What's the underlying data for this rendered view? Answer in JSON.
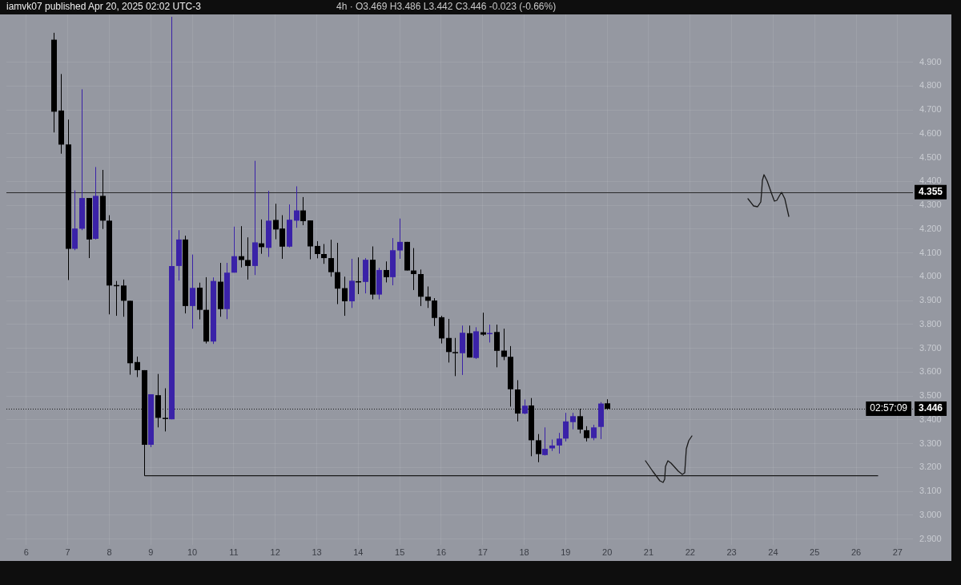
{
  "chart_data": {
    "type": "candlestick",
    "title": "iamvk07 published Apr 20, 2025 02:02 UTC-3",
    "subtitle": "4h · O3.469 H3.486 L3.442 C3.446 -0.023 (-0.66%)",
    "x": [
      6.667,
      6.833,
      7,
      7.167,
      7.333,
      7.5,
      7.667,
      7.833,
      8,
      8.167,
      8.333,
      8.5,
      8.667,
      8.833,
      9,
      9.167,
      9.333,
      9.5,
      9.667,
      9.833,
      10,
      10.167,
      10.333,
      10.5,
      10.667,
      10.833,
      11,
      11.167,
      11.333,
      11.5,
      11.667,
      11.833,
      12,
      12.167,
      12.333,
      12.5,
      12.667,
      12.833,
      13,
      13.167,
      13.333,
      13.5,
      13.667,
      13.833,
      14,
      14.167,
      14.333,
      14.5,
      14.667,
      14.833,
      15,
      15.167,
      15.333,
      15.5,
      15.667,
      15.833,
      16,
      16.167,
      16.333,
      16.5,
      16.667,
      16.833,
      17,
      17.167,
      17.333,
      17.5,
      17.667,
      17.833,
      18,
      18.167,
      18.333,
      18.5,
      18.667,
      18.833,
      19,
      19.167,
      19.333,
      19.5,
      19.667,
      19.833,
      20
    ],
    "ohlc": [
      [
        4.994,
        5.023,
        4.605,
        4.692
      ],
      [
        4.697,
        4.85,
        4.516,
        4.554
      ],
      [
        4.555,
        4.659,
        3.986,
        4.117
      ],
      [
        4.117,
        4.362,
        4.111,
        4.202
      ],
      [
        4.201,
        4.786,
        4.195,
        4.33
      ],
      [
        4.33,
        4.33,
        4.078,
        4.156
      ],
      [
        4.159,
        4.46,
        4.156,
        4.339
      ],
      [
        4.339,
        4.448,
        4.2,
        4.235
      ],
      [
        4.235,
        4.258,
        3.842,
        3.963
      ],
      [
        3.965,
        3.982,
        3.836,
        3.962
      ],
      [
        3.963,
        3.988,
        3.832,
        3.899
      ],
      [
        3.899,
        3.899,
        3.589,
        3.637
      ],
      [
        3.642,
        3.665,
        3.579,
        3.608
      ],
      [
        3.608,
        3.608,
        3.165,
        3.295
      ],
      [
        3.295,
        3.507,
        3.285,
        3.507
      ],
      [
        3.503,
        3.592,
        3.368,
        3.408
      ],
      [
        3.408,
        3.532,
        3.351,
        3.405
      ],
      [
        3.402,
        5.09,
        3.402,
        4.045
      ],
      [
        4.045,
        4.195,
        3.984,
        4.156
      ],
      [
        4.156,
        4.172,
        3.846,
        3.877
      ],
      [
        3.877,
        4.093,
        3.782,
        3.953
      ],
      [
        3.954,
        3.975,
        3.821,
        3.861
      ],
      [
        3.861,
        3.998,
        3.72,
        3.728
      ],
      [
        3.728,
        3.997,
        3.718,
        3.982
      ],
      [
        3.979,
        4.058,
        3.832,
        3.864
      ],
      [
        3.864,
        4.058,
        3.822,
        4.017
      ],
      [
        4.017,
        4.21,
        4.017,
        4.086
      ],
      [
        4.086,
        4.212,
        4.039,
        4.07
      ],
      [
        4.07,
        4.165,
        3.988,
        4.045
      ],
      [
        4.045,
        4.486,
        4.007,
        4.144
      ],
      [
        4.14,
        4.24,
        4.096,
        4.124
      ],
      [
        4.121,
        4.36,
        4.083,
        4.235
      ],
      [
        4.238,
        4.306,
        4.157,
        4.198
      ],
      [
        4.202,
        4.258,
        4.075,
        4.126
      ],
      [
        4.126,
        4.303,
        4.123,
        4.239
      ],
      [
        4.235,
        4.379,
        4.205,
        4.278
      ],
      [
        4.278,
        4.334,
        4.216,
        4.233
      ],
      [
        4.236,
        4.236,
        4.073,
        4.127
      ],
      [
        4.129,
        4.149,
        4.077,
        4.095
      ],
      [
        4.095,
        4.137,
        4.054,
        4.078
      ],
      [
        4.078,
        4.155,
        4,
        4.019
      ],
      [
        4.019,
        4.142,
        3.885,
        3.95
      ],
      [
        3.952,
        4,
        3.836,
        3.897
      ],
      [
        3.897,
        4.075,
        3.869,
        3.983
      ],
      [
        3.981,
        4.081,
        3.927,
        3.978
      ],
      [
        3.978,
        4.078,
        3.93,
        4.071
      ],
      [
        4.071,
        4.127,
        3.905,
        3.925
      ],
      [
        3.925,
        4.037,
        3.905,
        4.028
      ],
      [
        4.028,
        4.064,
        3.976,
        3.998
      ],
      [
        3.998,
        4.162,
        3.964,
        4.111
      ],
      [
        4.11,
        4.244,
        4.075,
        4.146
      ],
      [
        4.146,
        4.146,
        4.026,
        4.026
      ],
      [
        4.026,
        4.12,
        3.944,
        4.011
      ],
      [
        4.011,
        4.03,
        3.877,
        3.916
      ],
      [
        3.916,
        3.959,
        3.869,
        3.899
      ],
      [
        3.9,
        3.91,
        3.793,
        3.827
      ],
      [
        3.83,
        3.836,
        3.72,
        3.741
      ],
      [
        3.743,
        3.823,
        3.64,
        3.684
      ],
      [
        3.684,
        3.743,
        3.583,
        3.681
      ],
      [
        3.679,
        3.795,
        3.588,
        3.765
      ],
      [
        3.763,
        3.795,
        3.661,
        3.661
      ],
      [
        3.659,
        3.788,
        3.655,
        3.771
      ],
      [
        3.767,
        3.849,
        3.752,
        3.757
      ],
      [
        3.761,
        3.799,
        3.724,
        3.764
      ],
      [
        3.768,
        3.799,
        3.62,
        3.689
      ],
      [
        3.69,
        3.782,
        3.65,
        3.664
      ],
      [
        3.664,
        3.709,
        3.455,
        3.528
      ],
      [
        3.527,
        3.566,
        3.393,
        3.426
      ],
      [
        3.426,
        3.485,
        3.423,
        3.459
      ],
      [
        3.46,
        3.491,
        3.247,
        3.314
      ],
      [
        3.314,
        3.34,
        3.222,
        3.256
      ],
      [
        3.252,
        3.368,
        3.25,
        3.278
      ],
      [
        3.28,
        3.317,
        3.269,
        3.292
      ],
      [
        3.292,
        3.345,
        3.258,
        3.321
      ],
      [
        3.321,
        3.429,
        3.309,
        3.393
      ],
      [
        3.39,
        3.429,
        3.36,
        3.415
      ],
      [
        3.415,
        3.446,
        3.343,
        3.359
      ],
      [
        3.356,
        3.373,
        3.309,
        3.323
      ],
      [
        3.323,
        3.379,
        3.314,
        3.368
      ],
      [
        3.37,
        3.474,
        3.319,
        3.468
      ],
      [
        3.469,
        3.486,
        3.442,
        3.446
      ]
    ],
    "colors": [
      "#000000",
      "#000000",
      "#000000",
      "#3a22a8",
      "#3a22a8",
      "#000000",
      "#3a22a8",
      "#000000",
      "#000000",
      "#000000",
      "#000000",
      "#000000",
      "#000000",
      "#000000",
      "#3a22a8",
      "#000000",
      "#000000",
      "#3a22a8",
      "#3a22a8",
      "#000000",
      "#3a22a8",
      "#000000",
      "#000000",
      "#3a22a8",
      "#000000",
      "#3a22a8",
      "#3a22a8",
      "#000000",
      "#000000",
      "#3a22a8",
      "#000000",
      "#3a22a8",
      "#000000",
      "#000000",
      "#3a22a8",
      "#3a22a8",
      "#000000",
      "#000000",
      "#000000",
      "#000000",
      "#000000",
      "#000000",
      "#000000",
      "#3a22a8",
      "#000000",
      "#3a22a8",
      "#000000",
      "#3a22a8",
      "#000000",
      "#3a22a8",
      "#3a22a8",
      "#000000",
      "#000000",
      "#000000",
      "#000000",
      "#000000",
      "#000000",
      "#000000",
      "#000000",
      "#3a22a8",
      "#000000",
      "#3a22a8",
      "#000000",
      "#3a22a8",
      "#000000",
      "#000000",
      "#000000",
      "#000000",
      "#3a22a8",
      "#000000",
      "#000000",
      "#3a22a8",
      "#3a22a8",
      "#3a22a8",
      "#3a22a8",
      "#3a22a8",
      "#000000",
      "#000000",
      "#3a22a8",
      "#3a22a8",
      "#000000"
    ],
    "series": [
      {
        "type": "line",
        "x": [
          8.85,
          26.53
        ],
        "values": [
          3.165,
          3.165
        ],
        "color": "#1a1a1a"
      }
    ],
    "xlim": [
      5.52,
      27.37
    ],
    "xticks": [
      6,
      7,
      8,
      9,
      10,
      11,
      12,
      13,
      14,
      15,
      16,
      17,
      18,
      19,
      20,
      21,
      22,
      23,
      24,
      25,
      26,
      27
    ],
    "ylim": [
      2.875,
      5.1
    ],
    "yticks": [
      {
        "value": 2.9,
        "label": "2.900"
      },
      {
        "value": 3,
        "label": "3.000"
      },
      {
        "value": 3.1,
        "label": "3.100"
      },
      {
        "value": 3.2,
        "label": "3.200"
      },
      {
        "value": 3.3,
        "label": "3.300"
      },
      {
        "value": 3.4,
        "label": "3.400"
      },
      {
        "value": 3.5,
        "label": "3.500"
      },
      {
        "value": 3.6,
        "label": "3.600"
      },
      {
        "value": 3.7,
        "label": "3.700"
      },
      {
        "value": 3.8,
        "label": "3.800"
      },
      {
        "value": 3.9,
        "label": "3.900"
      },
      {
        "value": 4,
        "label": "4.000"
      },
      {
        "value": 4.1,
        "label": "4.100"
      },
      {
        "value": 4.2,
        "label": "4.200"
      },
      {
        "value": 4.3,
        "label": "4.300"
      },
      {
        "value": 4.4,
        "label": "4.400"
      },
      {
        "value": 4.5,
        "label": "4.500"
      },
      {
        "value": 4.6,
        "label": "4.600"
      },
      {
        "value": 4.7,
        "label": "4.700"
      },
      {
        "value": 4.8,
        "label": "4.800"
      },
      {
        "value": 4.9,
        "label": "4.900"
      }
    ],
    "grid": true,
    "ref_lines": [
      {
        "axis": "y",
        "value": 4.355,
        "label": "4.355",
        "color": "#2a2a2a",
        "line_style": "solid"
      },
      {
        "axis": "y",
        "value": 3.446,
        "label": "3.446",
        "color": "#1a1a1a",
        "line_style": "dotted"
      }
    ],
    "annotations": [
      "02:57:09"
    ]
  }
}
